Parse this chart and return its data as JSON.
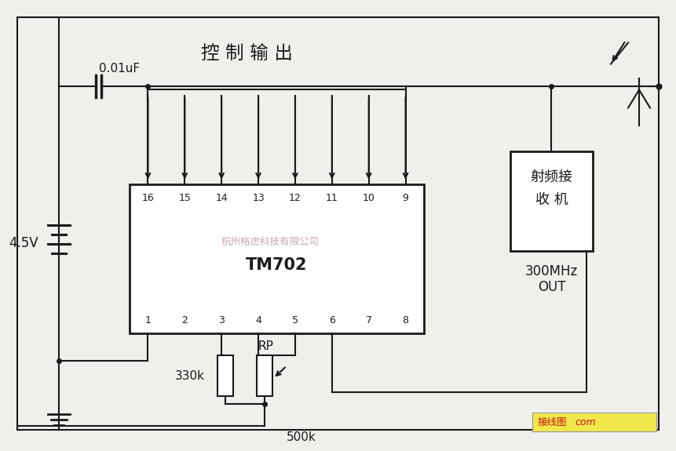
{
  "bg_color": "#f0efeb",
  "line_color": "#1a1a1a",
  "title": "控 制 输 出",
  "chip_label": "TM702",
  "watermark": "杭州格虑科技有限公司",
  "cap_label": "0.01uF",
  "voltage_label": "4.5V",
  "res_label": "330k",
  "pot_label": "RP",
  "pot_val": "500k",
  "receiver_line1": "射频接",
  "receiver_line2": "收 机",
  "freq_label": "300MHz",
  "out_label": "OUT",
  "top_pins": [
    "16",
    "15",
    "14",
    "13",
    "12",
    "11",
    "10",
    "9"
  ],
  "bot_pins": [
    "1",
    "2",
    "3",
    "4",
    "5",
    "6",
    "7",
    "8"
  ],
  "watermark_color": "#c8a8a8",
  "logo_color": "#cc2222"
}
